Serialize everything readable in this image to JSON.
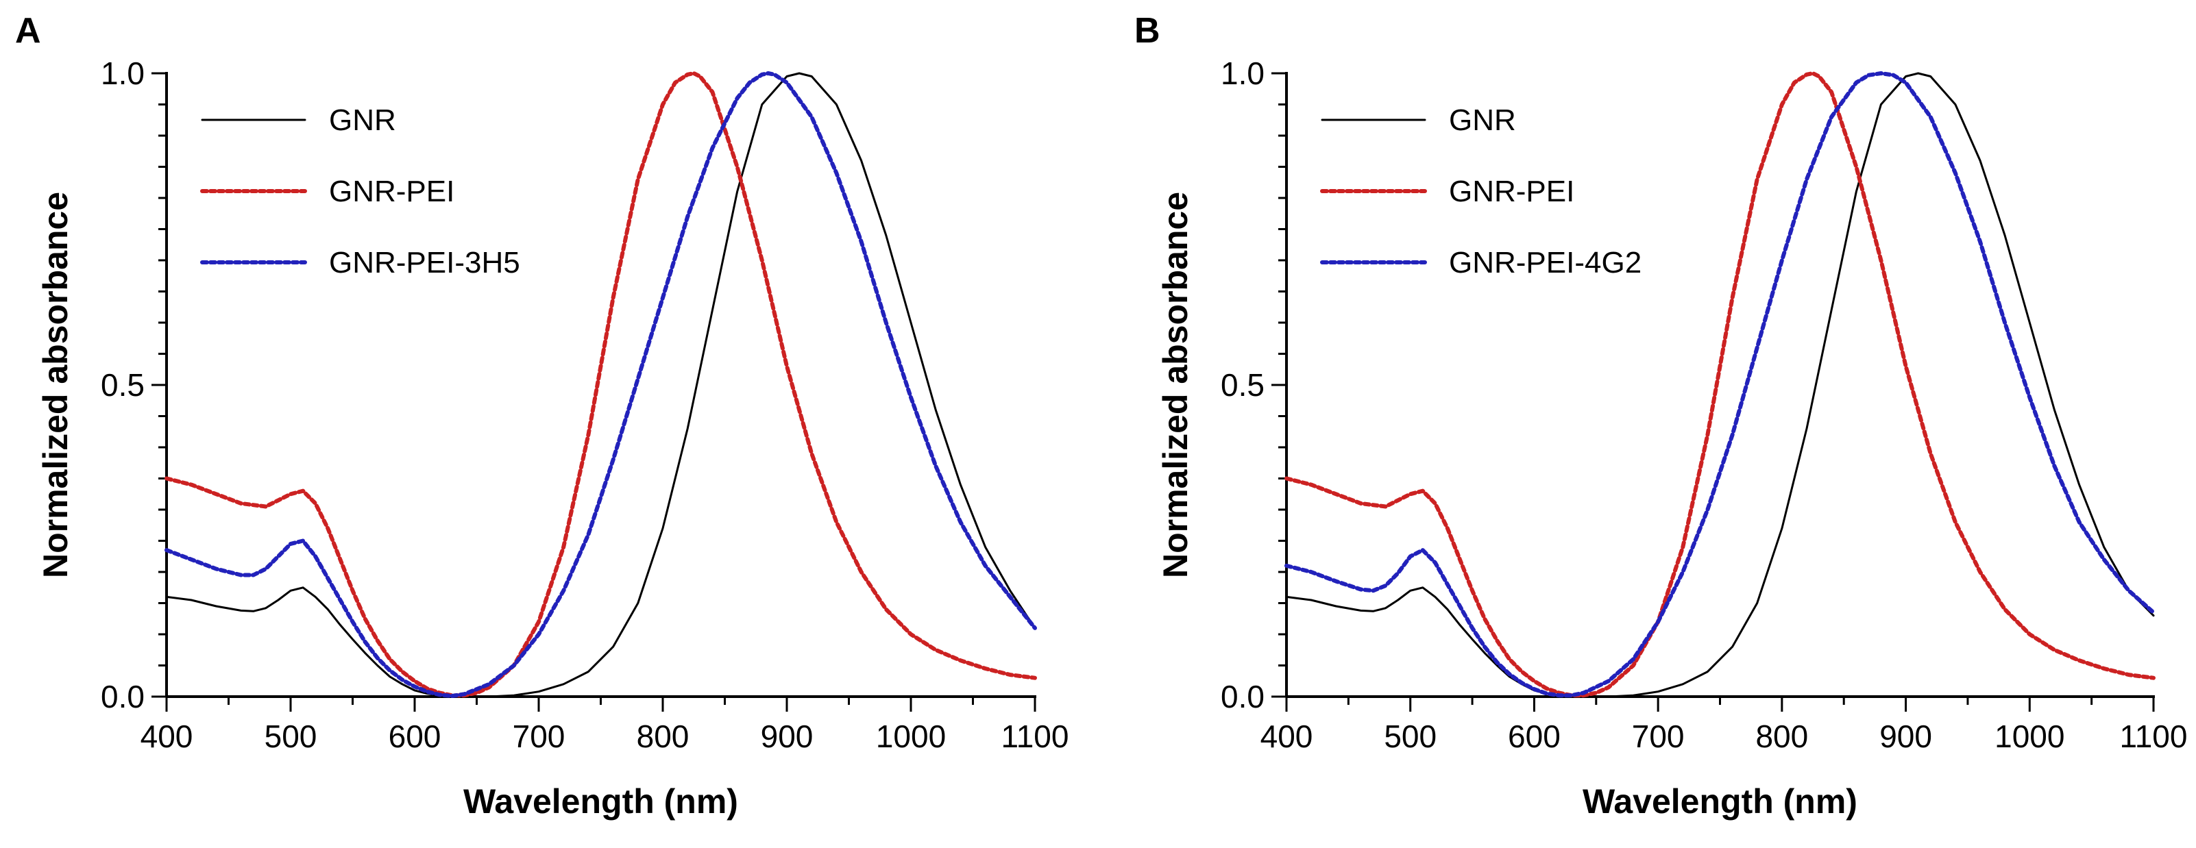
{
  "figure": {
    "panels": [
      {
        "letter": "A",
        "xlabel": "Wavelength (nm)",
        "ylabel": "Normalized absorbance"
      },
      {
        "letter": "B",
        "xlabel": "Wavelength (nm)",
        "ylabel": "Normalized absorbance"
      }
    ]
  },
  "chart_data": [
    {
      "type": "line",
      "panel": "A",
      "title": "",
      "xlabel": "Wavelength (nm)",
      "ylabel": "Normalized absorbance",
      "xlim": [
        400,
        1100
      ],
      "ylim": [
        0.0,
        1.0
      ],
      "xticks": [
        400,
        500,
        600,
        700,
        800,
        900,
        1000,
        1100
      ],
      "xtick_labels": [
        "400",
        "500",
        "600",
        "700",
        "800",
        "900",
        "1000",
        "1100"
      ],
      "yticks": [
        0.0,
        0.5,
        1.0
      ],
      "ytick_labels": [
        "0.0",
        "0.5",
        "1.0"
      ],
      "legend_position": "top-left",
      "series": [
        {
          "name": "GNR",
          "color": "#000000",
          "style": "solid",
          "x": [
            400,
            420,
            440,
            460,
            470,
            480,
            490,
            500,
            510,
            520,
            530,
            540,
            550,
            560,
            570,
            580,
            590,
            600,
            610,
            620,
            630,
            640,
            650,
            660,
            680,
            700,
            720,
            740,
            760,
            780,
            800,
            820,
            840,
            860,
            880,
            900,
            910,
            920,
            940,
            960,
            980,
            1000,
            1020,
            1040,
            1060,
            1080,
            1100
          ],
          "y": [
            0.16,
            0.155,
            0.145,
            0.138,
            0.137,
            0.142,
            0.155,
            0.17,
            0.175,
            0.16,
            0.14,
            0.115,
            0.092,
            0.07,
            0.05,
            0.032,
            0.02,
            0.01,
            0.005,
            0.002,
            0.0,
            0.0,
            0.0,
            0.0,
            0.002,
            0.008,
            0.02,
            0.04,
            0.08,
            0.15,
            0.27,
            0.43,
            0.62,
            0.81,
            0.95,
            0.995,
            1.0,
            0.995,
            0.95,
            0.86,
            0.74,
            0.6,
            0.46,
            0.34,
            0.24,
            0.17,
            0.11
          ]
        },
        {
          "name": "GNR-PEI",
          "color": "#cc2222",
          "style": "dotted",
          "x": [
            400,
            420,
            440,
            460,
            480,
            490,
            500,
            510,
            520,
            530,
            540,
            550,
            560,
            570,
            580,
            590,
            600,
            610,
            620,
            630,
            640,
            650,
            660,
            680,
            700,
            720,
            740,
            760,
            780,
            800,
            810,
            820,
            825,
            830,
            840,
            860,
            880,
            900,
            920,
            940,
            960,
            980,
            1000,
            1020,
            1040,
            1060,
            1080,
            1100
          ],
          "y": [
            0.35,
            0.34,
            0.325,
            0.31,
            0.305,
            0.315,
            0.325,
            0.33,
            0.31,
            0.27,
            0.22,
            0.17,
            0.125,
            0.09,
            0.06,
            0.04,
            0.025,
            0.013,
            0.006,
            0.002,
            0.002,
            0.006,
            0.015,
            0.05,
            0.12,
            0.24,
            0.42,
            0.64,
            0.83,
            0.95,
            0.985,
            0.998,
            1.0,
            0.995,
            0.97,
            0.85,
            0.7,
            0.53,
            0.39,
            0.28,
            0.2,
            0.14,
            0.1,
            0.075,
            0.058,
            0.045,
            0.035,
            0.03
          ]
        },
        {
          "name": "GNR-PEI-3H5",
          "color": "#2222bb",
          "style": "dotted",
          "x": [
            400,
            420,
            440,
            460,
            470,
            480,
            490,
            500,
            510,
            520,
            530,
            540,
            550,
            560,
            570,
            580,
            590,
            600,
            610,
            620,
            630,
            640,
            660,
            680,
            700,
            720,
            740,
            760,
            780,
            800,
            820,
            840,
            860,
            870,
            880,
            885,
            890,
            900,
            920,
            940,
            960,
            980,
            1000,
            1020,
            1040,
            1060,
            1080,
            1100
          ],
          "y": [
            0.235,
            0.22,
            0.205,
            0.195,
            0.195,
            0.205,
            0.225,
            0.245,
            0.25,
            0.225,
            0.19,
            0.155,
            0.12,
            0.088,
            0.062,
            0.042,
            0.027,
            0.016,
            0.008,
            0.003,
            0.001,
            0.004,
            0.02,
            0.05,
            0.1,
            0.17,
            0.26,
            0.38,
            0.51,
            0.64,
            0.77,
            0.88,
            0.96,
            0.985,
            0.998,
            1.0,
            0.998,
            0.985,
            0.93,
            0.84,
            0.73,
            0.6,
            0.48,
            0.37,
            0.28,
            0.21,
            0.16,
            0.11
          ]
        }
      ]
    },
    {
      "type": "line",
      "panel": "B",
      "title": "",
      "xlabel": "Wavelength (nm)",
      "ylabel": "Normalized absorbance",
      "xlim": [
        400,
        1100
      ],
      "ylim": [
        0.0,
        1.0
      ],
      "xticks": [
        400,
        500,
        600,
        700,
        800,
        900,
        1000,
        1100
      ],
      "xtick_labels": [
        "400",
        "500",
        "600",
        "700",
        "800",
        "900",
        "1000",
        "1100"
      ],
      "yticks": [
        0.0,
        0.5,
        1.0
      ],
      "ytick_labels": [
        "0.0",
        "0.5",
        "1.0"
      ],
      "legend_position": "top-left",
      "series": [
        {
          "name": "GNR",
          "color": "#000000",
          "style": "solid",
          "x": [
            400,
            420,
            440,
            460,
            470,
            480,
            490,
            500,
            510,
            520,
            530,
            540,
            550,
            560,
            570,
            580,
            590,
            600,
            610,
            620,
            630,
            640,
            650,
            660,
            680,
            700,
            720,
            740,
            760,
            780,
            800,
            820,
            840,
            860,
            880,
            900,
            910,
            920,
            940,
            960,
            980,
            1000,
            1020,
            1040,
            1060,
            1080,
            1100
          ],
          "y": [
            0.16,
            0.155,
            0.145,
            0.138,
            0.137,
            0.142,
            0.155,
            0.17,
            0.175,
            0.16,
            0.14,
            0.115,
            0.092,
            0.07,
            0.05,
            0.032,
            0.02,
            0.01,
            0.005,
            0.002,
            0.0,
            0.0,
            0.0,
            0.0,
            0.002,
            0.008,
            0.02,
            0.04,
            0.08,
            0.15,
            0.27,
            0.43,
            0.62,
            0.81,
            0.95,
            0.995,
            1.0,
            0.995,
            0.95,
            0.86,
            0.74,
            0.6,
            0.46,
            0.34,
            0.24,
            0.17,
            0.13
          ]
        },
        {
          "name": "GNR-PEI",
          "color": "#cc2222",
          "style": "dotted",
          "x": [
            400,
            420,
            440,
            460,
            480,
            490,
            500,
            510,
            520,
            530,
            540,
            550,
            560,
            570,
            580,
            590,
            600,
            610,
            620,
            630,
            640,
            650,
            660,
            680,
            700,
            720,
            740,
            760,
            780,
            800,
            810,
            820,
            825,
            830,
            840,
            860,
            880,
            900,
            920,
            940,
            960,
            980,
            1000,
            1020,
            1040,
            1060,
            1080,
            1100
          ],
          "y": [
            0.35,
            0.34,
            0.325,
            0.31,
            0.305,
            0.315,
            0.325,
            0.33,
            0.31,
            0.27,
            0.22,
            0.17,
            0.125,
            0.09,
            0.06,
            0.04,
            0.025,
            0.013,
            0.006,
            0.002,
            0.002,
            0.006,
            0.015,
            0.05,
            0.12,
            0.24,
            0.42,
            0.64,
            0.83,
            0.95,
            0.985,
            0.998,
            1.0,
            0.995,
            0.97,
            0.85,
            0.7,
            0.53,
            0.39,
            0.28,
            0.2,
            0.14,
            0.1,
            0.075,
            0.058,
            0.045,
            0.035,
            0.03
          ]
        },
        {
          "name": "GNR-PEI-4G2",
          "color": "#2222bb",
          "style": "dotted",
          "x": [
            400,
            420,
            440,
            460,
            470,
            480,
            490,
            500,
            510,
            520,
            530,
            540,
            550,
            560,
            570,
            580,
            590,
            600,
            610,
            620,
            630,
            640,
            660,
            680,
            700,
            720,
            740,
            760,
            780,
            800,
            820,
            840,
            860,
            870,
            880,
            890,
            900,
            920,
            940,
            960,
            980,
            1000,
            1020,
            1040,
            1060,
            1080,
            1100
          ],
          "y": [
            0.21,
            0.2,
            0.185,
            0.172,
            0.17,
            0.178,
            0.198,
            0.225,
            0.235,
            0.215,
            0.18,
            0.145,
            0.11,
            0.08,
            0.055,
            0.036,
            0.022,
            0.012,
            0.005,
            0.002,
            0.002,
            0.006,
            0.025,
            0.06,
            0.12,
            0.2,
            0.3,
            0.42,
            0.56,
            0.7,
            0.83,
            0.93,
            0.985,
            0.997,
            1.0,
            0.997,
            0.985,
            0.93,
            0.84,
            0.73,
            0.6,
            0.48,
            0.37,
            0.28,
            0.22,
            0.17,
            0.135
          ]
        }
      ]
    }
  ]
}
